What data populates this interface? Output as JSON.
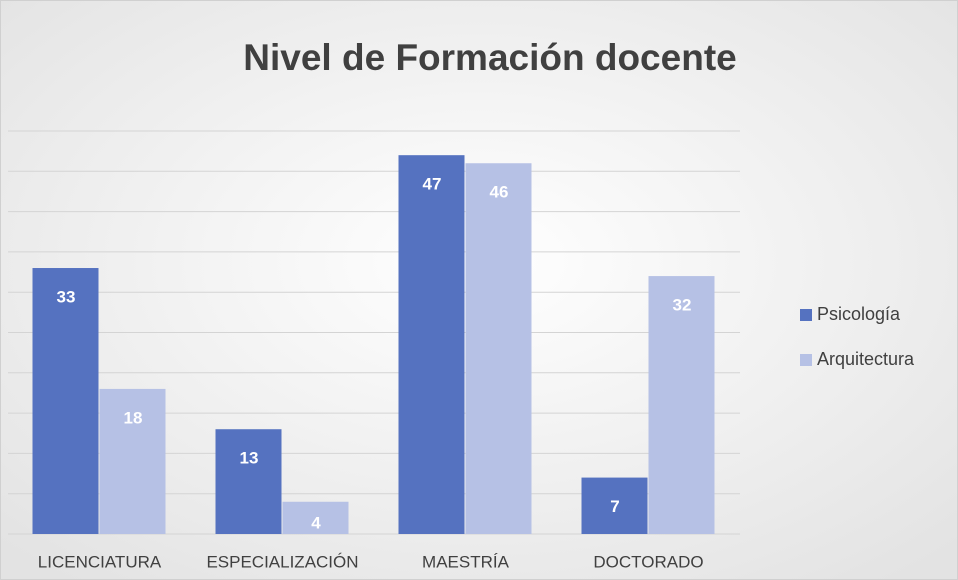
{
  "chart_data": {
    "type": "bar",
    "title": "Nivel de Formación docente",
    "categories": [
      "LICENCIATURA",
      "ESPECIALIZACIÓN",
      "MAESTRÍA",
      "DOCTORADO"
    ],
    "series": [
      {
        "name": "Psicología",
        "color": "#5572c0",
        "values": [
          33,
          13,
          47,
          7
        ]
      },
      {
        "name": "Arquitectura",
        "color": "#b6c1e5",
        "values": [
          18,
          4,
          46,
          32
        ]
      }
    ],
    "ylim": [
      0,
      50
    ],
    "yticks": [
      0,
      5,
      10,
      15,
      20,
      25,
      30,
      35,
      40,
      45,
      50
    ],
    "grid": true,
    "legend": "right"
  }
}
